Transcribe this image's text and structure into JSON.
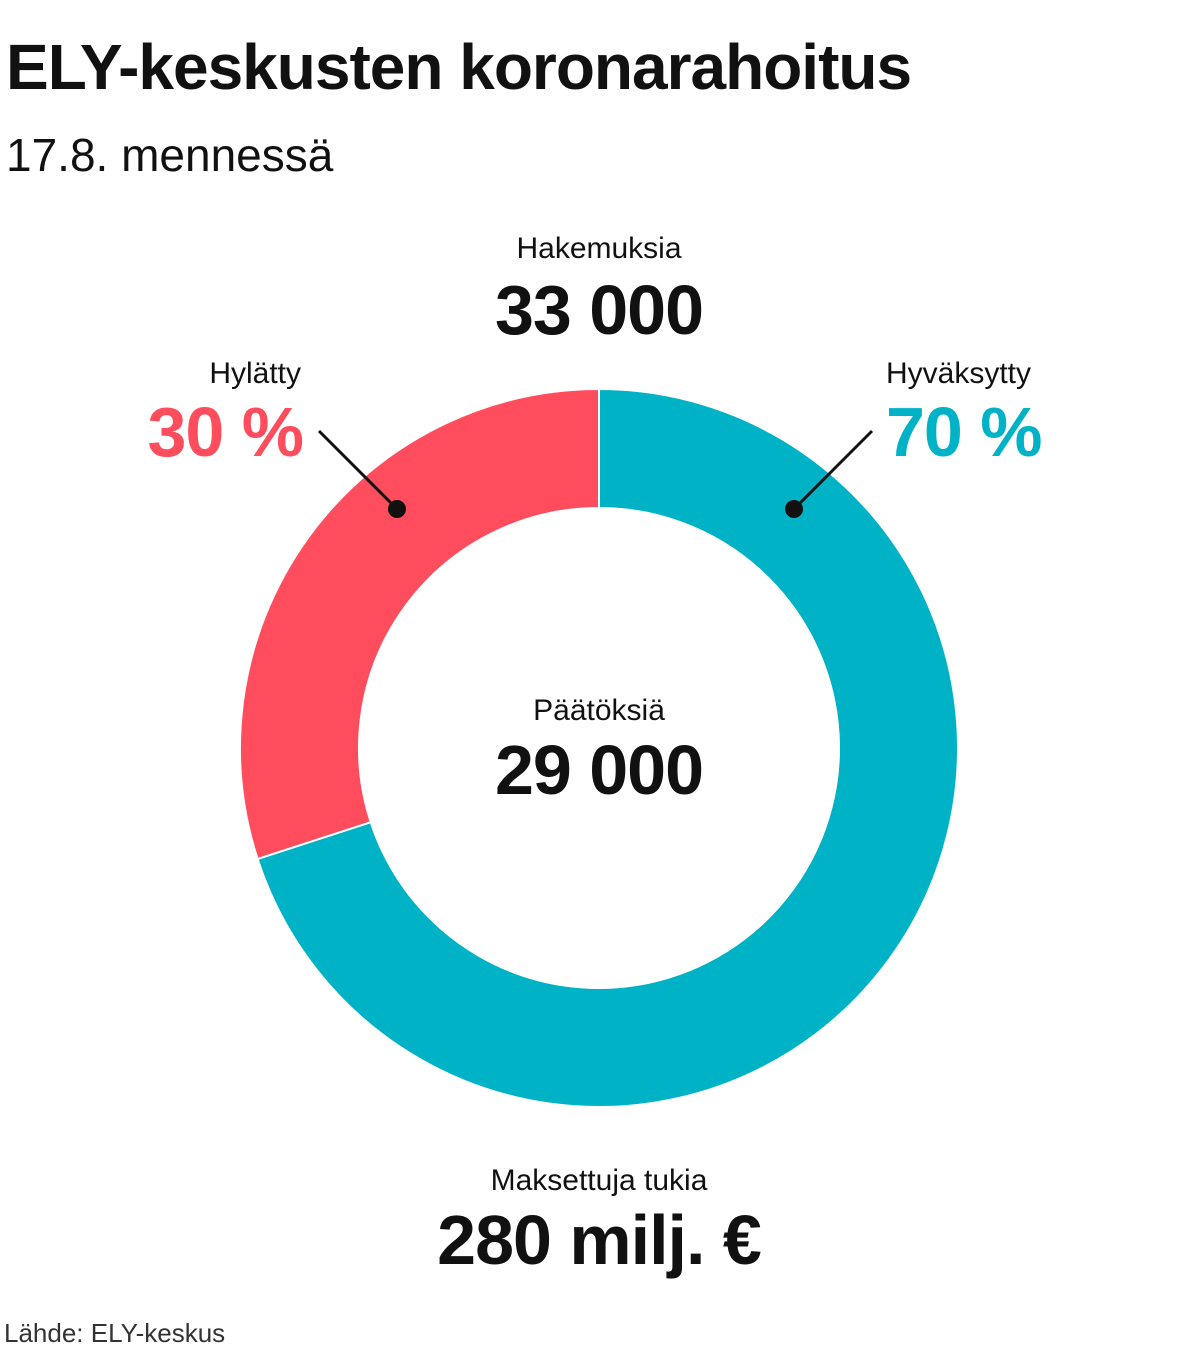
{
  "title": "ELY-keskusten koronarahoitus",
  "subtitle": "17.8. mennessä",
  "top_stat": {
    "label": "Hakemuksia",
    "value": "33 000"
  },
  "center_stat": {
    "label": "Päätöksiä",
    "value": "29 000"
  },
  "bottom_stat": {
    "label": "Maksettuja tukia",
    "value": "280 milj. €"
  },
  "source": "Lähde: ELY-keskus",
  "chart_data": {
    "type": "pie",
    "donut": true,
    "slices": [
      {
        "name": "Hyväksytty",
        "value": 70,
        "label": "70 %",
        "color": "#00b2c6"
      },
      {
        "name": "Hylätty",
        "value": 30,
        "label": "30 %",
        "color": "#ff4d5e"
      }
    ]
  },
  "colors": {
    "approved": "#00b2c6",
    "rejected": "#ff4d5e",
    "text": "#111111"
  }
}
